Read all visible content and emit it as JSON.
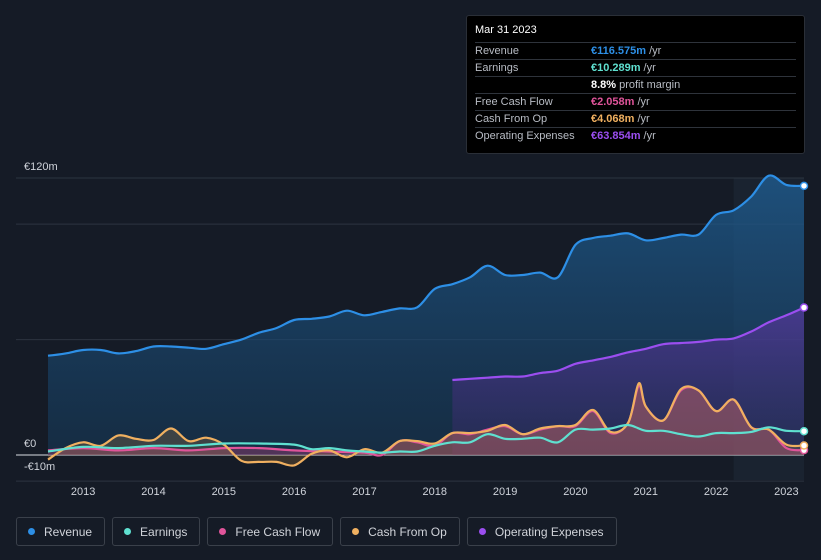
{
  "chart_data": {
    "type": "area",
    "y_axis": {
      "max_label": "€120m",
      "zero_label": "€0",
      "min_label": "-€10m",
      "ylim": [
        -10,
        120
      ]
    },
    "x_ticks": [
      "2013",
      "2014",
      "2015",
      "2016",
      "2017",
      "2018",
      "2019",
      "2020",
      "2021",
      "2022",
      "2023"
    ],
    "xlim": [
      2012.5,
      2023.25
    ],
    "highlight_start": 2022.25,
    "series": [
      {
        "name": "Revenue",
        "color": "#2d8fe6",
        "fill": true,
        "x": [
          2012.5,
          2012.75,
          2013.0,
          2013.25,
          2013.5,
          2013.75,
          2014.0,
          2014.25,
          2014.5,
          2014.75,
          2015.0,
          2015.25,
          2015.5,
          2015.75,
          2016.0,
          2016.25,
          2016.5,
          2016.75,
          2017.0,
          2017.25,
          2017.5,
          2017.75,
          2018.0,
          2018.25,
          2018.5,
          2018.75,
          2019.0,
          2019.25,
          2019.5,
          2019.75,
          2020.0,
          2020.25,
          2020.5,
          2020.75,
          2021.0,
          2021.25,
          2021.5,
          2021.75,
          2022.0,
          2022.25,
          2022.5,
          2022.75,
          2023.0,
          2023.25
        ],
        "values": [
          43,
          44,
          45.5,
          45.5,
          44,
          45,
          47,
          47,
          46.5,
          46,
          48,
          50,
          53,
          55,
          58.5,
          59,
          60,
          62.5,
          60.5,
          62,
          63.5,
          64,
          72,
          74,
          77,
          82,
          78,
          78,
          79,
          77,
          91,
          94,
          95,
          96,
          93,
          94,
          95.5,
          95.5,
          104,
          106,
          112,
          121,
          117,
          116.6
        ]
      },
      {
        "name": "Operating Expenses",
        "color": "#9b4ef0",
        "fill": true,
        "x": [
          2018.25,
          2018.5,
          2018.75,
          2019.0,
          2019.25,
          2019.5,
          2019.75,
          2020.0,
          2020.25,
          2020.5,
          2020.75,
          2021.0,
          2021.25,
          2021.5,
          2021.75,
          2022.0,
          2022.25,
          2022.5,
          2022.75,
          2023.0,
          2023.25
        ],
        "values": [
          32.5,
          33,
          33.5,
          34,
          34,
          35.5,
          36.5,
          39.5,
          41,
          42.5,
          44.5,
          46,
          48,
          48.5,
          49,
          50,
          50.5,
          53.5,
          57.5,
          60.5,
          63.9
        ]
      },
      {
        "name": "Free Cash Flow",
        "color": "#e0549a",
        "fill": true,
        "x": [
          2012.5,
          2013.0,
          2013.5,
          2014.0,
          2014.5,
          2015.0,
          2015.5,
          2016.0,
          2016.5,
          2017.0,
          2017.25,
          2017.5,
          2017.75,
          2018.0,
          2018.25,
          2018.5,
          2018.75,
          2019.0,
          2019.25,
          2019.5,
          2019.75,
          2020.0,
          2020.25,
          2020.5,
          2020.75,
          2020.9,
          2021.0,
          2021.25,
          2021.5,
          2021.75,
          2022.0,
          2022.25,
          2022.5,
          2022.75,
          2023.0,
          2023.25
        ],
        "values": [
          2,
          3,
          2,
          3,
          2,
          3,
          3,
          2,
          1.5,
          1,
          0,
          6,
          5.5,
          4,
          9.5,
          9,
          11,
          12.5,
          9,
          11,
          12.5,
          12.5,
          19,
          9.5,
          14,
          30,
          21,
          15,
          28,
          28,
          19,
          24,
          12,
          11,
          3,
          2.1
        ]
      },
      {
        "name": "Cash From Op",
        "color": "#f0b060",
        "fill": true,
        "x": [
          2012.5,
          2012.75,
          2013.0,
          2013.25,
          2013.5,
          2013.75,
          2014.0,
          2014.25,
          2014.5,
          2014.75,
          2015.0,
          2015.25,
          2015.5,
          2015.75,
          2016.0,
          2016.25,
          2016.5,
          2016.75,
          2017.0,
          2017.25,
          2017.5,
          2017.75,
          2018.0,
          2018.25,
          2018.5,
          2018.75,
          2019.0,
          2019.25,
          2019.5,
          2019.75,
          2020.0,
          2020.25,
          2020.5,
          2020.75,
          2020.9,
          2021.0,
          2021.25,
          2021.5,
          2021.75,
          2022.0,
          2022.25,
          2022.5,
          2022.75,
          2023.0,
          2023.25
        ],
        "values": [
          -2,
          3,
          5.5,
          4,
          8.5,
          7,
          6.5,
          11.5,
          6,
          7.5,
          4.5,
          -2.5,
          -3,
          -3,
          -4.5,
          0.5,
          2,
          -1,
          2.5,
          1,
          6,
          6,
          5,
          9.5,
          9.5,
          10.5,
          13,
          9,
          11.5,
          12.5,
          13,
          19.5,
          10,
          14,
          31,
          21,
          15,
          28.5,
          28,
          19,
          24,
          12,
          11,
          4.5,
          4.1
        ]
      },
      {
        "name": "Earnings",
        "color": "#5fe0d0",
        "fill": false,
        "x": [
          2012.5,
          2013.0,
          2013.5,
          2014.0,
          2014.5,
          2015.0,
          2015.5,
          2016.0,
          2016.25,
          2016.5,
          2016.75,
          2017.0,
          2017.25,
          2017.5,
          2017.75,
          2018.0,
          2018.25,
          2018.5,
          2018.75,
          2019.0,
          2019.25,
          2019.5,
          2019.75,
          2020.0,
          2020.25,
          2020.5,
          2020.75,
          2021.0,
          2021.25,
          2021.5,
          2021.75,
          2022.0,
          2022.25,
          2022.5,
          2022.75,
          2023.0,
          2023.25
        ],
        "values": [
          1.5,
          3.5,
          3,
          4,
          4,
          5,
          5,
          4.5,
          2.5,
          3,
          2,
          1.5,
          1,
          1.5,
          1.5,
          4,
          5.5,
          5.5,
          9,
          7,
          7,
          7.5,
          5.5,
          11,
          11,
          11.5,
          13,
          10.5,
          10.5,
          9,
          8,
          9.5,
          9.5,
          10,
          12,
          10.5,
          10.3
        ]
      }
    ]
  },
  "tooltip": {
    "date": "Mar 31 2023",
    "rows": [
      {
        "label": "Revenue",
        "value": "€116.575m",
        "unit": "/yr",
        "color": "#2d8fe6"
      },
      {
        "label": "Earnings",
        "value": "€10.289m",
        "unit": "/yr",
        "color": "#5fe0d0"
      },
      {
        "label": "",
        "value": "8.8%",
        "unit": "profit margin",
        "color": "#ffffff"
      },
      {
        "label": "Free Cash Flow",
        "value": "€2.058m",
        "unit": "/yr",
        "color": "#e0549a"
      },
      {
        "label": "Cash From Op",
        "value": "€4.068m",
        "unit": "/yr",
        "color": "#f0b060"
      },
      {
        "label": "Operating Expenses",
        "value": "€63.854m",
        "unit": "/yr",
        "color": "#9b4ef0"
      }
    ]
  },
  "legend": [
    {
      "label": "Revenue",
      "color": "#2d8fe6"
    },
    {
      "label": "Earnings",
      "color": "#5fe0d0"
    },
    {
      "label": "Free Cash Flow",
      "color": "#e0549a"
    },
    {
      "label": "Cash From Op",
      "color": "#f0b060"
    },
    {
      "label": "Operating Expenses",
      "color": "#9b4ef0"
    }
  ]
}
